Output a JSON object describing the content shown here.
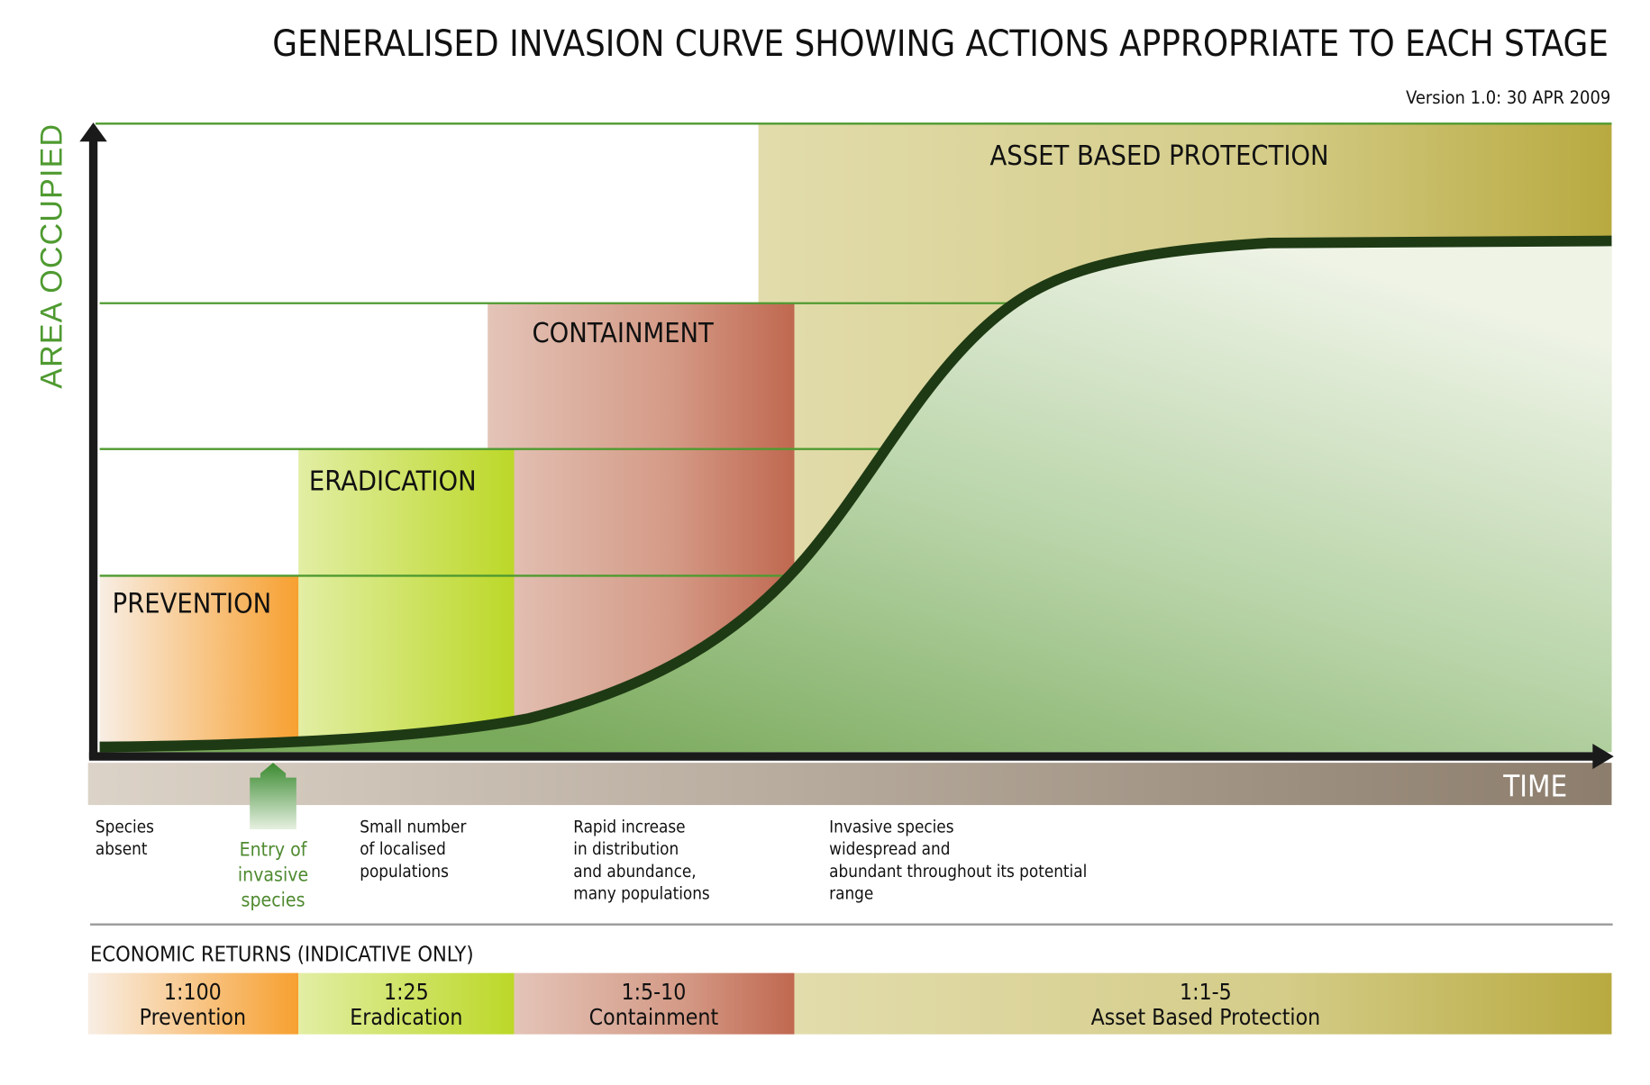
{
  "title": "GENERALISED INVASION CURVE SHOWING ACTIONS APPROPRIATE TO EACH STAGE",
  "version": "Version 1.0: 30 APR 2009",
  "axes": {
    "y_label": "AREA OCCUPIED",
    "x_label": "TIME"
  },
  "stages": [
    {
      "label": "PREVENTION",
      "color_start": "#f8eee4",
      "color_end": "#f7a030"
    },
    {
      "label": "ERADICATION",
      "color_start": "#e2eea4",
      "color_end": "#bcd828"
    },
    {
      "label": "CONTAINMENT",
      "color_start": "#e4c4b8",
      "color_end": "#c06850"
    },
    {
      "label": "ASSET BASED PROTECTION",
      "color_start": "#e2dcac",
      "color_end": "#b8aa40"
    }
  ],
  "entry_marker": {
    "lines": [
      "Entry of",
      "invasive",
      "species"
    ],
    "color": "#4f8a30"
  },
  "descriptions": [
    {
      "lines": [
        "Species",
        "absent"
      ]
    },
    {
      "lines": [
        "Small number",
        "of localised",
        "populations"
      ]
    },
    {
      "lines": [
        "Rapid increase",
        "in distribution",
        "and abundance,",
        "many populations"
      ]
    },
    {
      "lines": [
        "Invasive species",
        "widespread and",
        "abundant throughout its potential",
        "range"
      ]
    }
  ],
  "economic_returns": {
    "heading": "ECONOMIC RETURNS (INDICATIVE ONLY)",
    "segments": [
      {
        "ratio": "1:100",
        "label": "Prevention"
      },
      {
        "ratio": "1:25",
        "label": "Eradication"
      },
      {
        "ratio": "1:5-10",
        "label": "Containment"
      },
      {
        "ratio": "1:1-5",
        "label": "Asset Based Protection"
      }
    ]
  },
  "colors": {
    "axis_green": "#4f9a30",
    "curve": "#1e3a14",
    "time_band_start": "#dcd3c8",
    "time_band_end": "#8c7d6c"
  }
}
